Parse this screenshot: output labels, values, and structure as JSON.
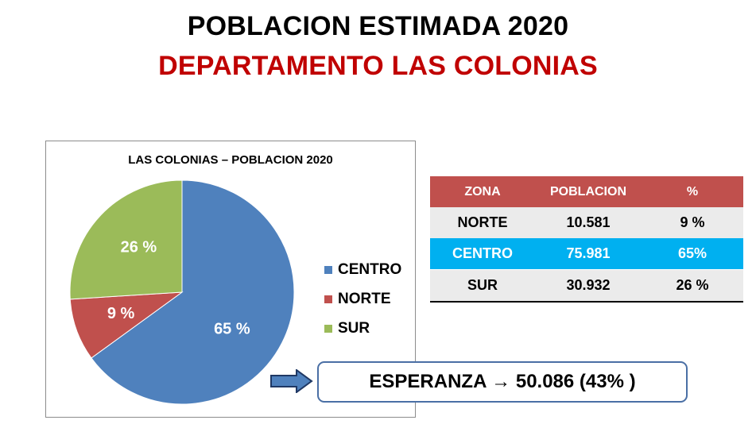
{
  "header": {
    "title": "POBLACION ESTIMADA 2020",
    "subtitle": "DEPARTAMENTO LAS COLONIAS"
  },
  "chart_data": {
    "type": "pie",
    "title": "LAS COLONIAS – POBLACION 2020",
    "categories": [
      "CENTRO",
      "NORTE",
      "SUR"
    ],
    "values": [
      65,
      9,
      26
    ],
    "labels": [
      "65 %",
      "9 %",
      "26 %"
    ],
    "colors": [
      "#4f81bd",
      "#c0504d",
      "#9bbb59"
    ],
    "legend_position": "right"
  },
  "table": {
    "headers": [
      "ZONA",
      "POBLACION",
      "%"
    ],
    "rows": [
      [
        "NORTE",
        "10.581",
        "9 %"
      ],
      [
        "CENTRO",
        "75.981",
        "65%"
      ],
      [
        "SUR",
        "30.932",
        "26 %"
      ]
    ]
  },
  "callout": {
    "text": "ESPERANZA → 50.086 (43% )"
  },
  "colors": {
    "title": "#000000",
    "subtitle": "#c00000",
    "table_header": "#c0504d",
    "highlight_row": "#00b0f0",
    "callout_border": "#4a6fa5"
  },
  "icons": {
    "callout_pointer": "right-arrow-icon"
  }
}
